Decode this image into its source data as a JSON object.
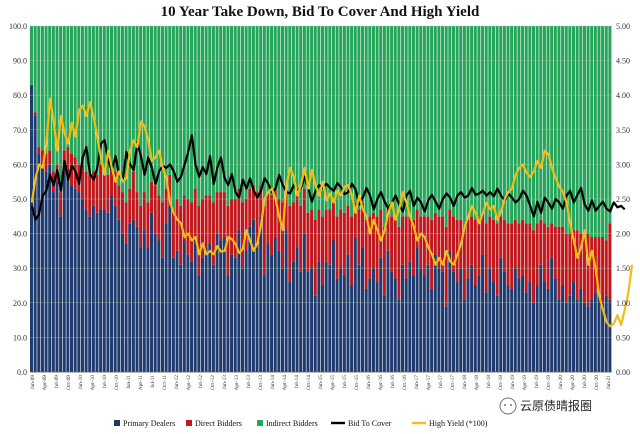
{
  "chart_data": {
    "type": "bar",
    "title": "10 Year Take Down, Bid To Cover And High Yield",
    "ylim": [
      0,
      100
    ],
    "y2lim": [
      0,
      5
    ],
    "yticks": [
      "0.0",
      "10.0",
      "20.0",
      "30.0",
      "40.0",
      "50.0",
      "60.0",
      "70.0",
      "80.0",
      "90.0",
      "100.0"
    ],
    "y2ticks": [
      "0.00",
      "0.50",
      "1.00",
      "1.50",
      "2.00",
      "2.50",
      "3.00",
      "3.50",
      "4.00",
      "4.50",
      "5.00"
    ],
    "xticks": [
      "Jan-09",
      "Apr-09",
      "Jul-09",
      "Oct-09",
      "Jan-10",
      "Apr-10",
      "Jul-10",
      "Oct-10",
      "Jan-11",
      "Apr-11",
      "Jul-11",
      "Oct-11",
      "Jan-12",
      "Apr-12",
      "Jul-12",
      "Oct-12",
      "Jan-13",
      "Apr-13",
      "Jul-13",
      "Oct-13",
      "Jan-14",
      "Apr-14",
      "Jul-14",
      "Oct-14",
      "Jan-15",
      "Apr-15",
      "Jul-15",
      "Oct-15",
      "Jan-16",
      "Apr-16",
      "Jul-16",
      "Oct-16",
      "Jan-17",
      "Apr-17",
      "Jul-17",
      "Oct-17",
      "Jan-18",
      "Apr-18",
      "Jul-18",
      "Oct-18",
      "Jan-19",
      "Apr-19",
      "Jul-19",
      "Oct-19",
      "Jan-20",
      "Apr-20",
      "Jul-20",
      "Oct-20",
      "Jan-21"
    ],
    "stack_series": [
      {
        "name": "Primary Dealers",
        "color": "#1f3a6e",
        "values": [
          83,
          74,
          63,
          60,
          58,
          60,
          52,
          55,
          45,
          58,
          57,
          54,
          53,
          52,
          50,
          47,
          45,
          48,
          46,
          47,
          47,
          46,
          51,
          48,
          44,
          40,
          37,
          43,
          44,
          42,
          36,
          41,
          36,
          46,
          40,
          38,
          33,
          43,
          48,
          33,
          35,
          31,
          38,
          34,
          32,
          39,
          28,
          33,
          36,
          37,
          31,
          40,
          38,
          39,
          28,
          34,
          33,
          41,
          30,
          35,
          42,
          44,
          36,
          45,
          28,
          37,
          34,
          39,
          35,
          30,
          41,
          26,
          32,
          36,
          29,
          40,
          29,
          30,
          22,
          32,
          25,
          32,
          31,
          38,
          27,
          30,
          28,
          34,
          25,
          39,
          31,
          36,
          24,
          27,
          30,
          26,
          33,
          22,
          35,
          29,
          27,
          21,
          31,
          27,
          32,
          28,
          36,
          30,
          28,
          31,
          24,
          34,
          30,
          29,
          19,
          35,
          29,
          26,
          30,
          21,
          27,
          31,
          25,
          28,
          34,
          23,
          30,
          26,
          22,
          33,
          29,
          25,
          24,
          30,
          27,
          28,
          23,
          26,
          20,
          25,
          31,
          26,
          24,
          33,
          27,
          21,
          25,
          20,
          22,
          26,
          21,
          24,
          20,
          19,
          21,
          23,
          22,
          20,
          22,
          21
        ]
      },
      {
        "name": "Direct Bidders",
        "color": "#c0171c",
        "values": [
          0,
          1,
          2,
          4,
          5,
          4,
          6,
          5,
          7,
          6,
          8,
          9,
          9,
          8,
          10,
          11,
          12,
          10,
          11,
          13,
          10,
          11,
          9,
          10,
          10,
          12,
          12,
          10,
          14,
          10,
          12,
          11,
          13,
          9,
          14,
          13,
          16,
          10,
          9,
          14,
          15,
          17,
          13,
          16,
          17,
          14,
          20,
          17,
          15,
          14,
          18,
          12,
          14,
          13,
          20,
          16,
          17,
          12,
          19,
          15,
          11,
          10,
          16,
          9,
          20,
          15,
          17,
          14,
          15,
          19,
          11,
          22,
          17,
          15,
          19,
          13,
          17,
          17,
          22,
          15,
          20,
          15,
          16,
          11,
          18,
          17,
          18,
          14,
          20,
          10,
          16,
          13,
          20,
          18,
          16,
          19,
          14,
          20,
          12,
          16,
          17,
          21,
          14,
          18,
          13,
          16,
          11,
          15,
          17,
          14,
          20,
          12,
          15,
          16,
          23,
          12,
          16,
          18,
          14,
          21,
          17,
          14,
          19,
          16,
          12,
          20,
          15,
          18,
          21,
          12,
          15,
          18,
          19,
          14,
          16,
          16,
          20,
          17,
          21,
          18,
          13,
          17,
          18,
          10,
          15,
          21,
          17,
          20,
          18,
          15,
          20,
          16,
          19,
          21,
          18,
          16,
          17,
          19,
          16,
          22
        ]
      },
      {
        "name": "Indirect Bidders",
        "color": "#24a65a"
      }
    ],
    "line_series": [
      {
        "name": "Bid To Cover",
        "color": "#000000",
        "axis": "right",
        "values": [
          2.4,
          2.2,
          2.28,
          2.55,
          2.62,
          2.85,
          2.7,
          2.92,
          2.62,
          3.05,
          2.78,
          2.98,
          2.9,
          2.72,
          3.1,
          3.25,
          2.86,
          2.78,
          2.95,
          3.3,
          3.35,
          3.05,
          2.92,
          3.12,
          2.85,
          2.78,
          3.18,
          3.0,
          2.92,
          3.32,
          3.12,
          2.85,
          3.1,
          2.95,
          2.72,
          2.9,
          2.98,
          2.95,
          3.0,
          2.9,
          2.75,
          2.82,
          3.0,
          3.18,
          3.42,
          3.0,
          2.82,
          2.96,
          2.86,
          3.12,
          2.72,
          2.95,
          3.1,
          2.8,
          2.7,
          2.86,
          2.6,
          2.52,
          2.78,
          2.65,
          2.8,
          2.62,
          2.52,
          2.62,
          2.8,
          2.72,
          2.6,
          2.65,
          2.85,
          2.7,
          2.6,
          2.58,
          2.7,
          2.62,
          2.66,
          2.82,
          2.66,
          2.46,
          2.62,
          2.7,
          2.66,
          2.72,
          2.66,
          2.62,
          2.73,
          2.67,
          2.57,
          2.6,
          2.72,
          2.64,
          2.42,
          2.52,
          2.66,
          2.55,
          2.35,
          2.5,
          2.6,
          2.46,
          2.36,
          2.45,
          2.55,
          2.42,
          2.32,
          2.55,
          2.62,
          2.4,
          2.52,
          2.45,
          2.32,
          2.48,
          2.56,
          2.46,
          2.36,
          2.5,
          2.58,
          2.52,
          2.4,
          2.55,
          2.6,
          2.52,
          2.55,
          2.66,
          2.56,
          2.58,
          2.62,
          2.55,
          2.6,
          2.54,
          2.65,
          2.55,
          2.48,
          2.58,
          2.52,
          2.45,
          2.5,
          2.62,
          2.55,
          2.4,
          2.25,
          2.46,
          2.3,
          2.52,
          2.45,
          2.36,
          2.5,
          2.45,
          2.36,
          2.55,
          2.62,
          2.45,
          2.56,
          2.66,
          2.42,
          2.33,
          2.48,
          2.33,
          2.4,
          2.46,
          2.36,
          2.32,
          2.45,
          2.38,
          2.4,
          2.35
        ]
      },
      {
        "name": "High Yield (*100)",
        "color": "#f2bd16",
        "axis": "right",
        "values": [
          2.45,
          2.8,
          3.0,
          2.95,
          3.3,
          3.95,
          3.62,
          3.2,
          3.7,
          3.45,
          3.3,
          3.6,
          3.4,
          3.78,
          3.85,
          3.7,
          3.9,
          3.68,
          3.4,
          3.1,
          2.85,
          3.2,
          2.95,
          2.75,
          2.9,
          2.75,
          2.8,
          3.2,
          3.35,
          3.25,
          3.62,
          3.55,
          3.35,
          3.05,
          3.1,
          3.2,
          2.95,
          2.8,
          2.45,
          2.3,
          2.2,
          2.15,
          1.95,
          2.0,
          1.9,
          1.95,
          1.7,
          1.86,
          1.7,
          1.75,
          1.7,
          1.82,
          1.74,
          1.75,
          1.95,
          1.92,
          1.85,
          1.72,
          1.78,
          2.05,
          1.9,
          1.75,
          1.86,
          2.12,
          2.5,
          2.6,
          2.65,
          2.5,
          2.25,
          2.05,
          2.7,
          2.95,
          2.82,
          2.55,
          2.7,
          2.95,
          2.65,
          2.92,
          2.7,
          2.55,
          2.75,
          2.48,
          2.58,
          2.45,
          2.62,
          2.55,
          2.68,
          2.7,
          2.55,
          2.3,
          2.55,
          2.35,
          2.25,
          2.0,
          2.2,
          2.05,
          1.9,
          2.05,
          2.3,
          2.45,
          2.2,
          2.35,
          2.6,
          2.45,
          2.25,
          2.1,
          1.9,
          2.0,
          1.95,
          1.8,
          1.7,
          1.55,
          1.65,
          1.55,
          1.75,
          1.6,
          1.55,
          1.7,
          1.85,
          2.1,
          2.25,
          2.4,
          2.3,
          2.15,
          2.3,
          2.45,
          2.35,
          2.4,
          2.2,
          2.32,
          2.5,
          2.6,
          2.65,
          2.85,
          2.95,
          3.0,
          2.88,
          2.82,
          2.9,
          3.05,
          2.95,
          3.2,
          3.15,
          2.95,
          2.8,
          2.68,
          2.6,
          2.45,
          2.15,
          1.9,
          1.65,
          1.8,
          2.05,
          1.55,
          1.75,
          1.5,
          1.1,
          0.9,
          0.72,
          0.66,
          0.7,
          0.82,
          0.68,
          0.9,
          1.15,
          1.55
        ]
      }
    ],
    "legend_position": "bottom",
    "grid": true
  },
  "watermark": {
    "text": "云原债晴报圈"
  }
}
